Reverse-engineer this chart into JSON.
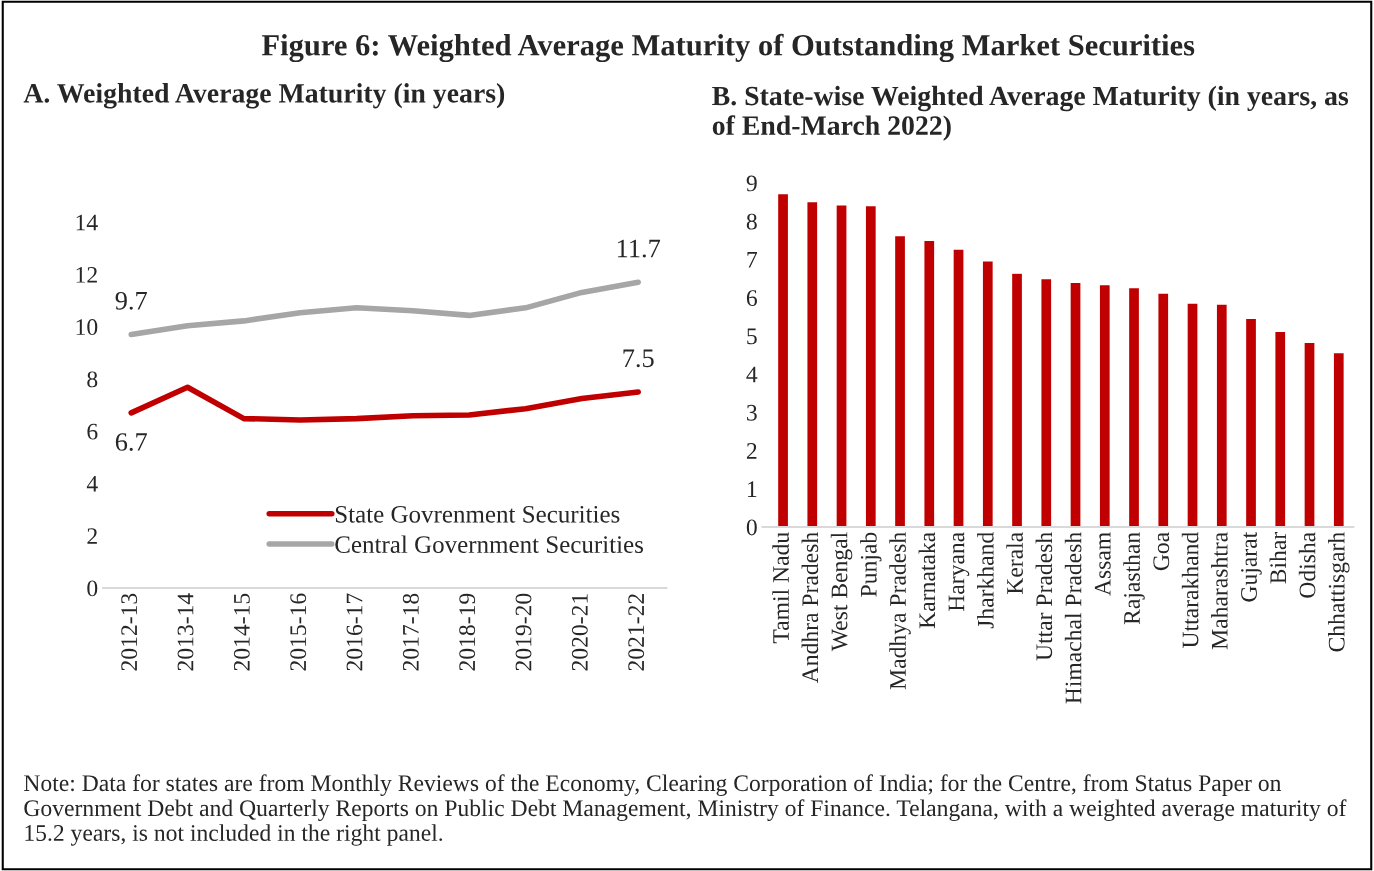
{
  "chart_data": [
    {
      "type": "line",
      "title": "Figure 6: Weighted Average Maturity of Outstanding Market Securities",
      "subtitle": "A. Weighted Average Maturity (in years)",
      "categories": [
        "2012-13",
        "2013-14",
        "2014-15",
        "2015-16",
        "2016-17",
        "2017-18",
        "2018-19",
        "2019-20",
        "2020-21",
        "2021-22"
      ],
      "series": [
        {
          "name": "State Govrenment Securities",
          "color": "#c00000",
          "values": [
            6.7,
            7.68,
            6.48,
            6.43,
            6.48,
            6.59,
            6.62,
            6.86,
            7.25,
            7.5
          ],
          "value_labels": [
            "6.7",
            null,
            null,
            null,
            null,
            null,
            null,
            null,
            null,
            "7.5"
          ]
        },
        {
          "name": "Central Government Securities",
          "color": "#a6a6a6",
          "values": [
            9.7,
            10.03,
            10.22,
            10.53,
            10.72,
            10.61,
            10.43,
            10.72,
            11.31,
            11.7
          ],
          "value_labels": [
            "9.7",
            null,
            null,
            null,
            null,
            null,
            null,
            null,
            null,
            "11.7"
          ]
        }
      ],
      "ylim": [
        0,
        14
      ],
      "yticks": [
        0,
        2,
        4,
        6,
        8,
        10,
        12,
        14
      ],
      "legend": "bottom right",
      "grid": false,
      "marker": "none",
      "line_style": "solid"
    },
    {
      "type": "bar",
      "title": "B. State-wise Weighted Average Maturity (in years, as of End-March 2022)",
      "categories": [
        "Tamil Nadu",
        "Andhra Pradesh",
        "West Bengal",
        "Punjab",
        "Madhya Pradesh",
        "Karnataka",
        "Haryana",
        "Jharkhand",
        "Kerala",
        "Uttar Pradesh",
        "Himachal Pradesh",
        "Assam",
        "Rajasthan",
        "Goa",
        "Uttarakhand",
        "Maharashtra",
        "Gujarat",
        "Bihar",
        "Odisha",
        "Chhattisgarh"
      ],
      "values": [
        8.72,
        8.51,
        8.43,
        8.41,
        7.62,
        7.5,
        7.27,
        6.96,
        6.64,
        6.5,
        6.4,
        6.34,
        6.26,
        6.12,
        5.86,
        5.83,
        5.46,
        5.12,
        4.83,
        4.56
      ],
      "color": "#c00000",
      "ylim": [
        0,
        9
      ],
      "yticks": [
        0,
        1,
        2,
        3,
        4,
        5,
        6,
        7,
        8,
        9
      ],
      "grid": false,
      "annotations": [
        "Note: Data for states are from Monthly Reviews of the Economy, Clearing Corporation of India; for the Centre, from Status Paper on Government Debt and Quarterly Reports on Public Debt Management, Ministry of Finance. Telangana, with a weighted average maturity of 15.2 years, is not included in the right panel."
      ]
    }
  ]
}
